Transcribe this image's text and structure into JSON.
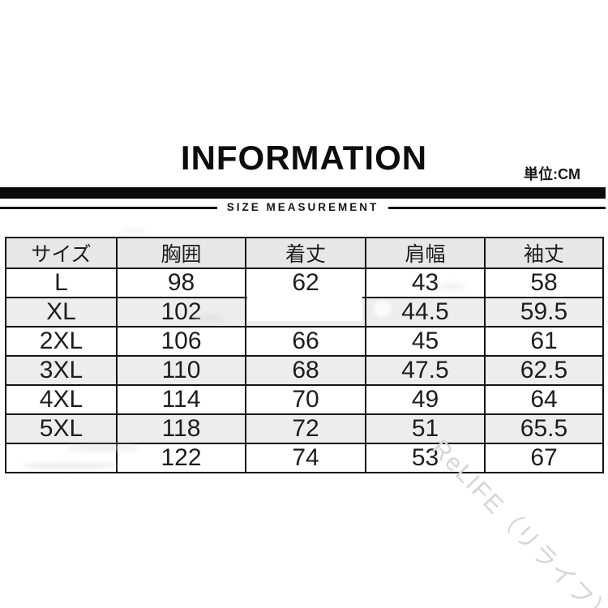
{
  "header": {
    "title": "INFORMATION",
    "unit_label": "単位:CM",
    "section_label": "SIZE MEASUREMENT"
  },
  "chart_data": {
    "type": "table",
    "title": "INFORMATION",
    "unit": "CM",
    "columns": [
      "サイズ",
      "胸囲",
      "着丈",
      "肩幅",
      "袖丈"
    ],
    "rows": [
      [
        "L",
        "98",
        "62",
        "43",
        "58"
      ],
      [
        "XL",
        "102",
        "",
        "44.5",
        "59.5"
      ],
      [
        "2XL",
        "106",
        "66",
        "45",
        "61"
      ],
      [
        "3XL",
        "110",
        "68",
        "47.5",
        "62.5"
      ],
      [
        "4XL",
        "114",
        "70",
        "49",
        "64"
      ],
      [
        "5XL",
        "118",
        "72",
        "51",
        "65.5"
      ],
      [
        "",
        "122",
        "74",
        "53",
        "67"
      ]
    ]
  },
  "watermark": {
    "text": "ReLIFE（リライフ）",
    "color": "#d6d6d6"
  },
  "colors": {
    "bar": "#0a0a0a",
    "border": "#141414",
    "header_row_bg": "#e7e7e7",
    "alt_row_bg": "#ededed",
    "text": "#1d1d1d"
  }
}
